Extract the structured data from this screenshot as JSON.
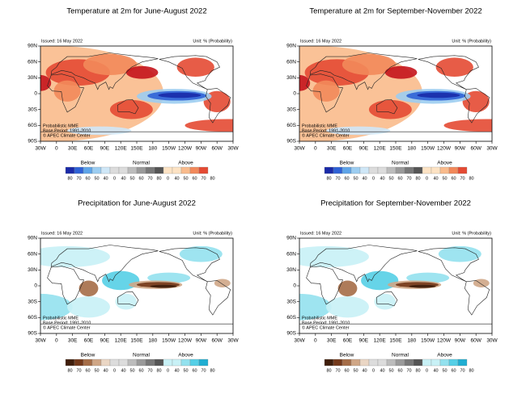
{
  "issued": "Issued: 16 May 2022",
  "unit": "Unit: % (Probability)",
  "notes": [
    "Probabilistic MME",
    "Base Period: 1991-2010",
    "© APEC Climate Center"
  ],
  "lat_labels": [
    "90N",
    "60N",
    "30N",
    "0",
    "30S",
    "60S",
    "90S"
  ],
  "lon_labels": [
    "30W",
    "0",
    "30E",
    "60E",
    "90E",
    "120E",
    "150E",
    "180",
    "150W",
    "120W",
    "90W",
    "60W",
    "30W"
  ],
  "legend_categories": [
    "Below",
    "Normal",
    "Above"
  ],
  "legend_labels": [
    "80",
    "70",
    "60",
    "50",
    "40",
    "0",
    "40",
    "50",
    "60",
    "70",
    "80",
    "0",
    "40",
    "50",
    "60",
    "70",
    "80"
  ],
  "panels": [
    {
      "title": "Temperature at 2m for June-August 2022",
      "kind": "temperature"
    },
    {
      "title": "Temperature at 2m for September-November 2022",
      "kind": "temperature"
    },
    {
      "title": "Precipitation for June-August 2022",
      "kind": "precipitation"
    },
    {
      "title": "Precipitation for September-November 2022",
      "kind": "precipitation"
    }
  ]
}
